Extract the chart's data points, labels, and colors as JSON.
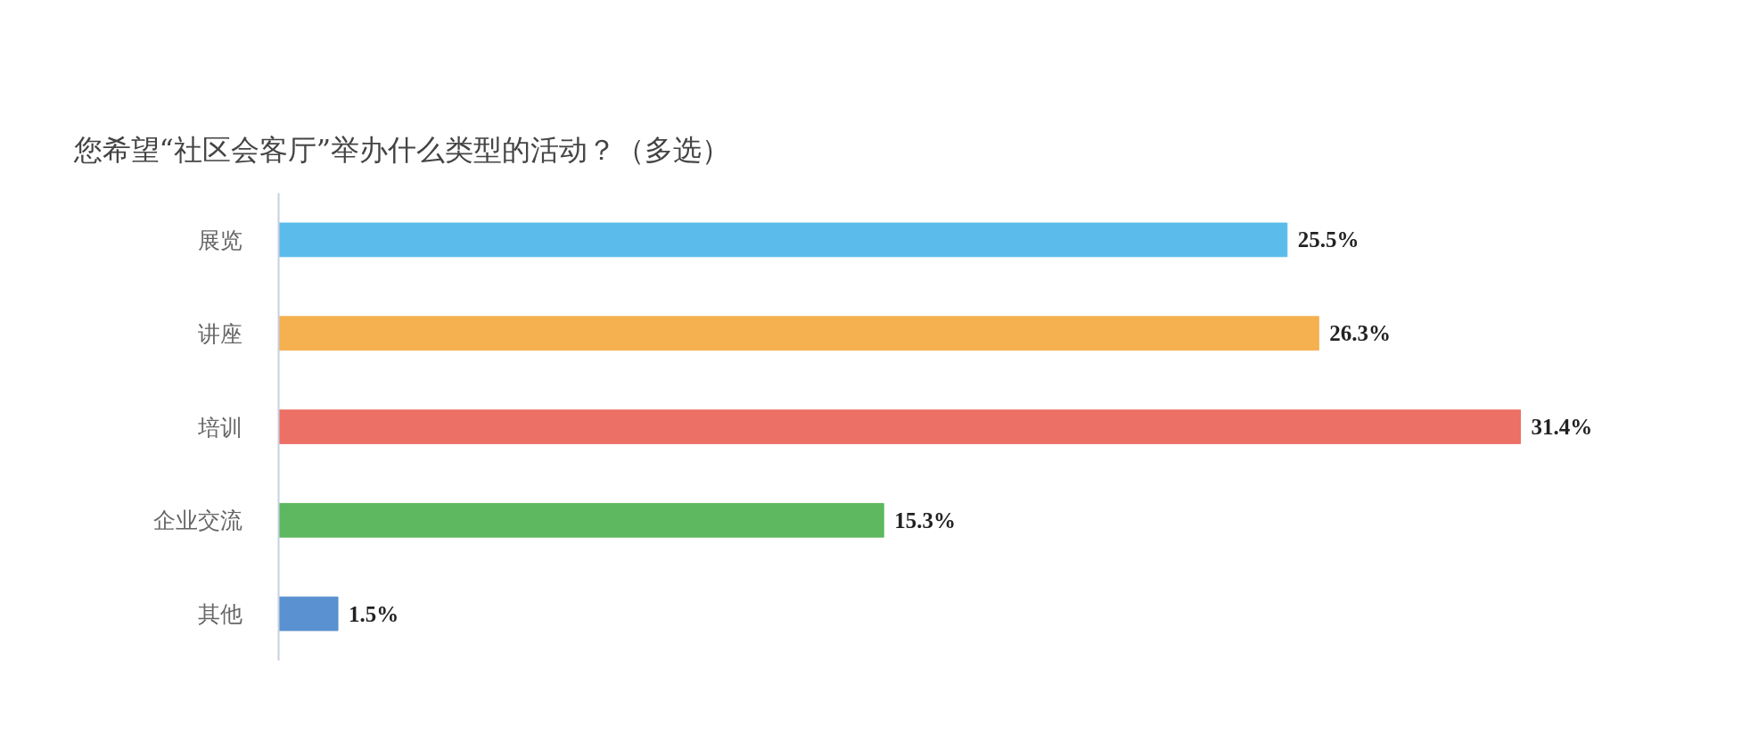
{
  "chart_data": {
    "type": "bar",
    "orientation": "horizontal",
    "title": "您希望“社区会客厅”举办什么类型的活动？（多选）",
    "categories": [
      "展览",
      "讲座",
      "培训",
      "企业交流",
      "其他"
    ],
    "values": [
      25.5,
      26.3,
      31.4,
      15.3,
      1.5
    ],
    "colors": [
      "#5bbcec",
      "#f5b04f",
      "#ec7065",
      "#5db85f",
      "#5a91d0"
    ],
    "value_labels": [
      "25.5%",
      "26.3%",
      "31.4%",
      "15.3%",
      "1.5%"
    ],
    "grid": false
  }
}
